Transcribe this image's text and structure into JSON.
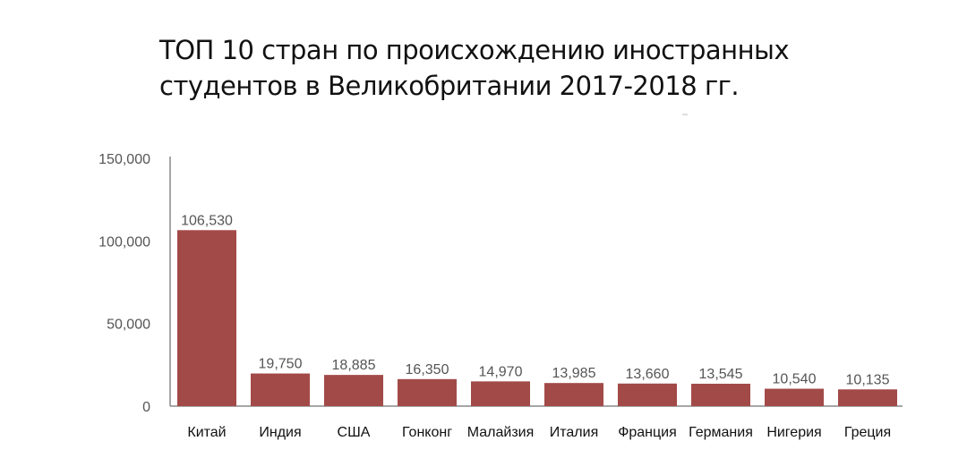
{
  "chart_data": {
    "type": "bar",
    "title": [
      "ТОП 10 стран по происхождению иностранных",
      "студентов в Великобритании 2017-2018 гг."
    ],
    "categories": [
      "Китай",
      "Индия",
      "США",
      "Гонконг",
      "Малайзия",
      "Италия",
      "Франция",
      "Германия",
      "Нигерия",
      "Греция"
    ],
    "values": [
      106530,
      19750,
      18885,
      16350,
      14970,
      13985,
      13660,
      13545,
      10540,
      10135
    ],
    "data_labels": [
      "106,530",
      "19,750",
      "18,885",
      "16,350",
      "14,970",
      "13,985",
      "13,660",
      "13,545",
      "10,540",
      "10,135"
    ],
    "xlabel": "",
    "ylabel": "",
    "ylim": [
      0,
      150000
    ],
    "yticks": [
      0,
      50000,
      100000,
      150000
    ],
    "ytick_labels": [
      "0",
      "50,000",
      "100,000",
      "150,000"
    ],
    "grid": false,
    "legend": "none",
    "bar_color": "#a24a48"
  }
}
